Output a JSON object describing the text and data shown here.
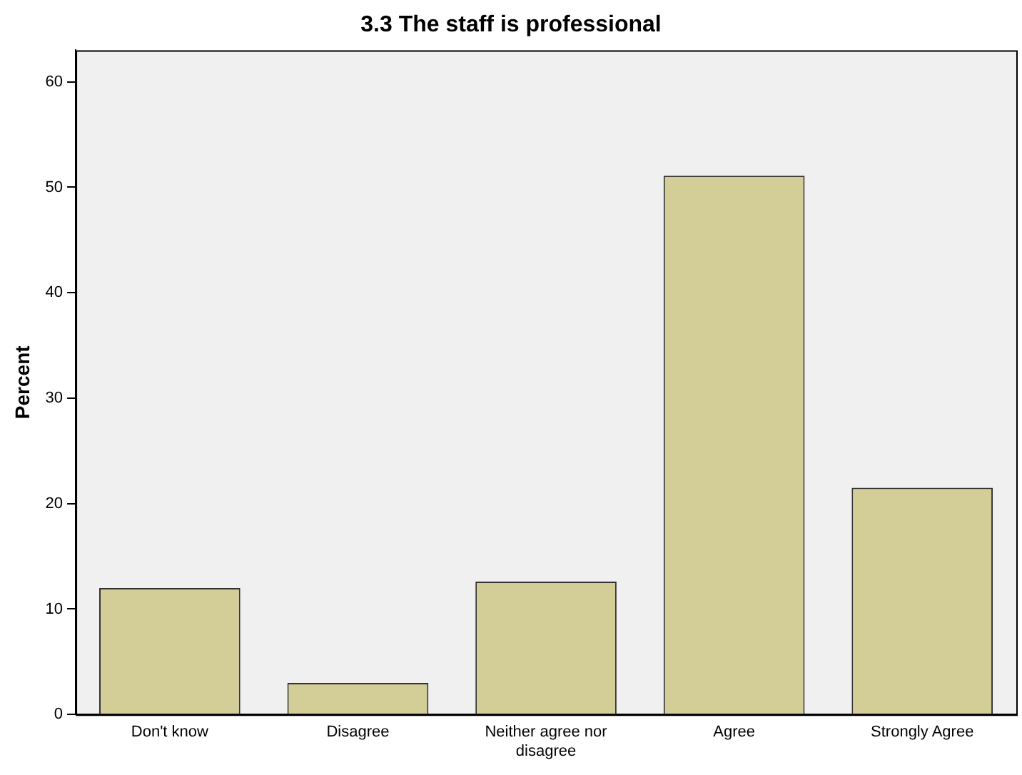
{
  "chart_data": {
    "type": "bar",
    "title": "3.3 The staff is professional",
    "ylabel": "Percent",
    "categories": [
      "Don't know",
      "Disagree",
      "Neither agree nor disagree",
      "Agree",
      "Strongly Agree"
    ],
    "values": [
      12,
      3,
      12.6,
      51.1,
      21.5
    ],
    "color": "#d3ce97",
    "ylim": [
      0,
      63
    ],
    "yticks": [
      0,
      10,
      20,
      30,
      40,
      50,
      60
    ],
    "grid": false,
    "legend": false
  }
}
